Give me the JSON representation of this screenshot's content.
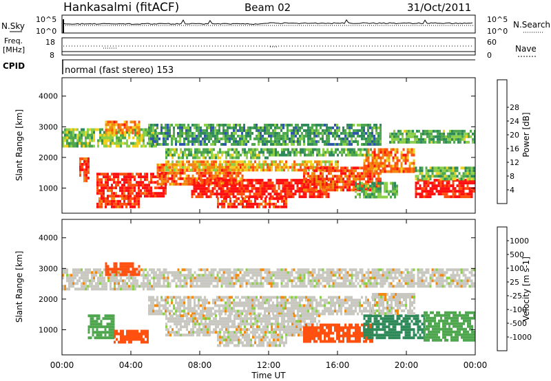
{
  "header": {
    "station": "Hankasalmi (fitACF)",
    "beam": "Beam 02",
    "date": "31/Oct/2011"
  },
  "top_panels": {
    "nsky_label": "N.Sky",
    "nsearch_label": "N.Search",
    "nsky_ticks": [
      "10^5",
      "10^0"
    ],
    "freq_label_1": "Freq.",
    "freq_label_2": "[MHz]",
    "freq_ticks": [
      "18",
      "8"
    ],
    "nave_label": "Nave",
    "nave_ticks": [
      "60",
      "0"
    ],
    "cpid_label": "CPID",
    "cpid_text": "normal (fast stereo) 153"
  },
  "colors": {
    "power_scale": [
      "#1f1fe0",
      "#2e55a8",
      "#2f8a5a",
      "#4ea64e",
      "#8cd04a",
      "#f0d020",
      "#f08a10",
      "#ff5010",
      "#ff1010"
    ],
    "velocity_scale": [
      "#ff1010",
      "#ff5010",
      "#f08a10",
      "#f6c44a",
      "#c8c8c0",
      "#8cd04a",
      "#4ea64e",
      "#2f8a5a",
      "#2e55a8"
    ]
  },
  "chart_data": [
    {
      "type": "heatmap",
      "panel": "power",
      "ylabel": "Slant Range [km]",
      "xlabel": "Time UT",
      "x_ticks": [
        "00:00",
        "04:00",
        "08:00",
        "12:00",
        "16:00",
        "20:00",
        "00:00"
      ],
      "y_ticks": [
        "1000",
        "2000",
        "3000",
        "4000"
      ],
      "ylim": [
        180,
        4600
      ],
      "xlim_hours": [
        0,
        24
      ],
      "colorbar_label": "Power [dB]",
      "colorbar_ticks": [
        "4",
        "8",
        "12",
        "16",
        "20",
        "24",
        "28"
      ],
      "colorbar_range": [
        0,
        30
      ],
      "echo_regions": [
        {
          "t0": 0.0,
          "t1": 5.5,
          "r0": 2350,
          "r1": 2950,
          "v": 14
        },
        {
          "t0": 2.5,
          "t1": 4.5,
          "r0": 2800,
          "r1": 3200,
          "v": 22
        },
        {
          "t0": 5.0,
          "t1": 18.5,
          "r0": 2400,
          "r1": 3100,
          "v": 10
        },
        {
          "t0": 19.0,
          "t1": 24.0,
          "r0": 2500,
          "r1": 2900,
          "v": 12
        },
        {
          "t0": 1.0,
          "t1": 1.6,
          "r0": 1200,
          "r1": 2000,
          "v": 26
        },
        {
          "t0": 2.0,
          "t1": 6.0,
          "r0": 700,
          "r1": 1500,
          "v": 28
        },
        {
          "t0": 2.0,
          "t1": 4.5,
          "r0": 350,
          "r1": 700,
          "v": 26
        },
        {
          "t0": 5.5,
          "t1": 10.5,
          "r0": 1100,
          "r1": 1800,
          "v": 24
        },
        {
          "t0": 6.0,
          "t1": 16.0,
          "r0": 1550,
          "r1": 1900,
          "v": 20
        },
        {
          "t0": 7.5,
          "t1": 15.5,
          "r0": 700,
          "r1": 1300,
          "v": 28
        },
        {
          "t0": 9.0,
          "t1": 13.0,
          "r0": 400,
          "r1": 700,
          "v": 27
        },
        {
          "t0": 14.0,
          "t1": 18.5,
          "r0": 900,
          "r1": 1700,
          "v": 25
        },
        {
          "t0": 17.5,
          "t1": 20.5,
          "r0": 1500,
          "r1": 2300,
          "v": 23
        },
        {
          "t0": 17.0,
          "t1": 19.5,
          "r0": 700,
          "r1": 1200,
          "v": 12
        },
        {
          "t0": 20.5,
          "t1": 24.0,
          "r0": 700,
          "r1": 1300,
          "v": 29
        },
        {
          "t0": 20.5,
          "t1": 24.0,
          "r0": 1300,
          "r1": 1700,
          "v": 13
        },
        {
          "t0": 6.0,
          "t1": 12.0,
          "r0": 2000,
          "r1": 2300,
          "v": 13
        },
        {
          "t0": 12.0,
          "t1": 18.0,
          "r0": 2050,
          "r1": 2300,
          "v": 12
        }
      ]
    },
    {
      "type": "heatmap",
      "panel": "velocity",
      "ylabel": "Slant Range [km]",
      "xlabel": "Time UT",
      "x_ticks": [
        "00:00",
        "04:00",
        "08:00",
        "12:00",
        "16:00",
        "20:00",
        "00:00"
      ],
      "y_ticks": [
        "1000",
        "2000",
        "3000",
        "4000"
      ],
      "ylim": [
        180,
        4600
      ],
      "xlim_hours": [
        0,
        24
      ],
      "colorbar_label": "Velocity [m s-1]",
      "colorbar_ticks": [
        "1000",
        "500",
        "100",
        "25",
        "-25",
        "-100",
        "-500",
        "-1000"
      ],
      "colorbar_range": [
        -1200,
        1200
      ],
      "echo_regions": [
        {
          "t0": 0.0,
          "t1": 5.5,
          "r0": 2350,
          "r1": 3000,
          "v": 0
        },
        {
          "t0": 5.5,
          "t1": 24.0,
          "r0": 2400,
          "r1": 3000,
          "v": 0
        },
        {
          "t0": 2.5,
          "t1": 4.5,
          "r0": 2800,
          "r1": 3200,
          "v": -300
        },
        {
          "t0": 5.0,
          "t1": 18.0,
          "r0": 1500,
          "r1": 2100,
          "v": 0
        },
        {
          "t0": 6.0,
          "t1": 15.0,
          "r0": 800,
          "r1": 1500,
          "v": 0
        },
        {
          "t0": 9.0,
          "t1": 13.0,
          "r0": 450,
          "r1": 800,
          "v": 0
        },
        {
          "t0": 1.5,
          "t1": 3.0,
          "r0": 700,
          "r1": 1500,
          "v": 400
        },
        {
          "t0": 3.0,
          "t1": 5.0,
          "r0": 600,
          "r1": 1000,
          "v": -200
        },
        {
          "t0": 14.0,
          "t1": 18.0,
          "r0": 600,
          "r1": 1200,
          "v": -250
        },
        {
          "t0": 17.5,
          "t1": 21.0,
          "r0": 700,
          "r1": 1500,
          "v": 600
        },
        {
          "t0": 21.0,
          "t1": 24.0,
          "r0": 700,
          "r1": 1600,
          "v": 300
        },
        {
          "t0": 18.0,
          "t1": 20.5,
          "r0": 1500,
          "r1": 2200,
          "v": 0
        }
      ]
    }
  ]
}
